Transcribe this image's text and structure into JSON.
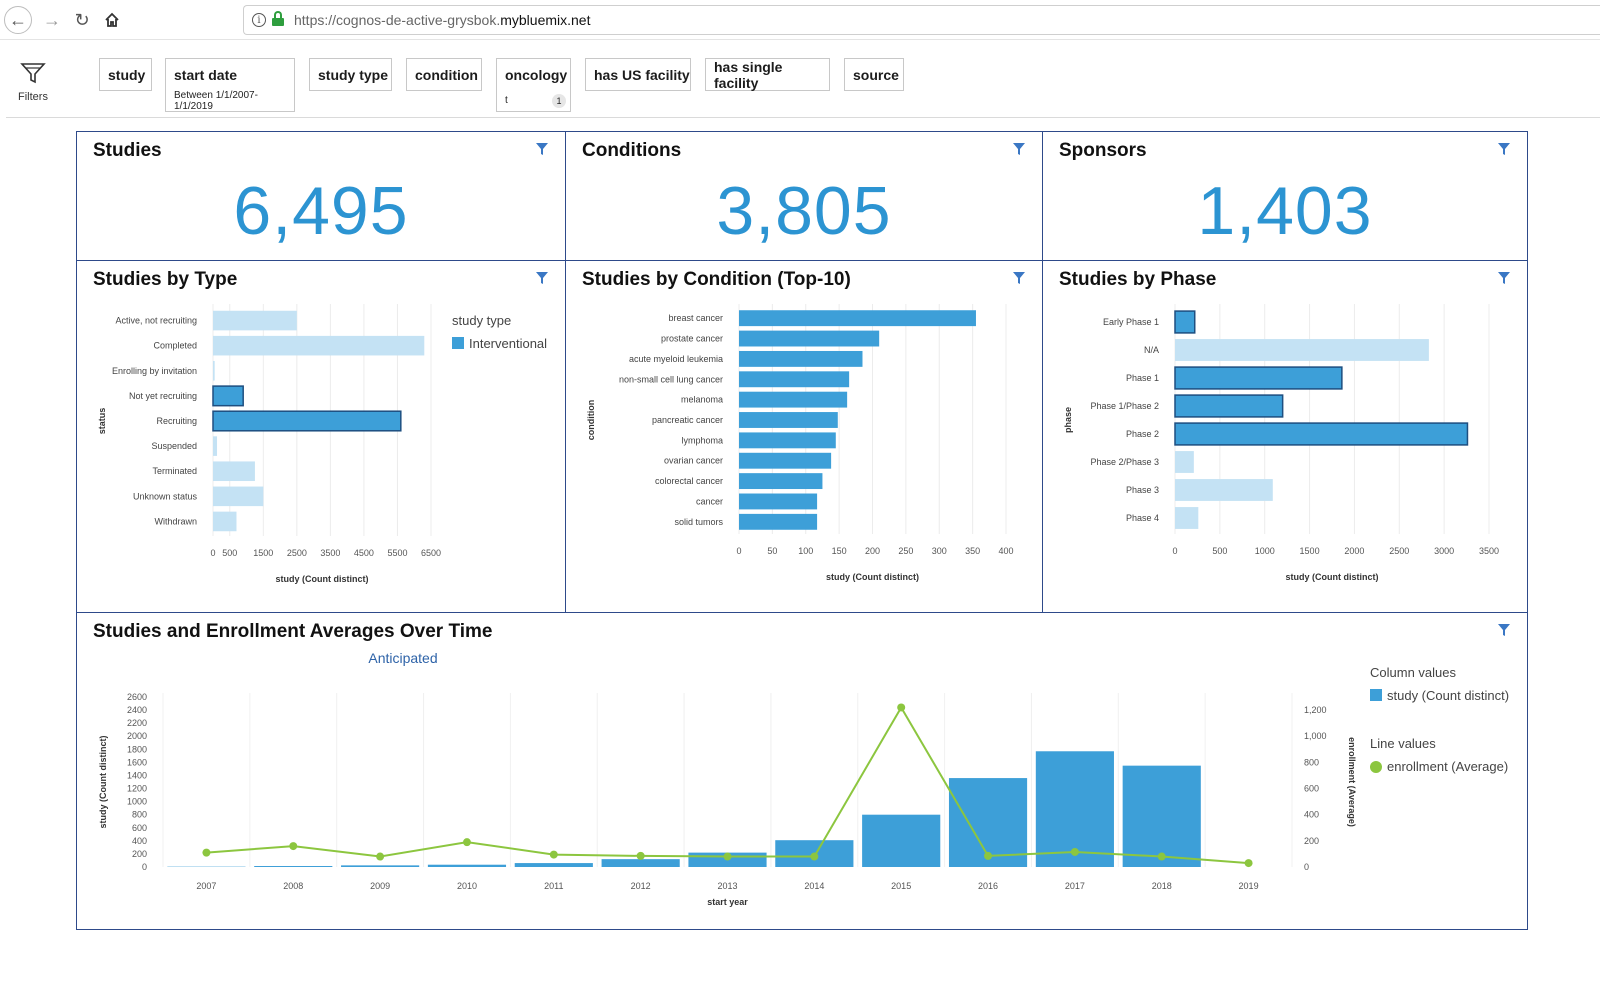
{
  "browser": {
    "url_prefix": "https://cognos-de-active-grysbok.",
    "url_host": "mybluemix.net"
  },
  "filters_label": "Filters",
  "chips": [
    {
      "label": "study"
    },
    {
      "label": "start date",
      "sub": "Between 1/1/2007-1/1/2019"
    },
    {
      "label": "study type"
    },
    {
      "label": "condition"
    },
    {
      "label": "oncology",
      "sub": "t",
      "count": "1"
    },
    {
      "label": "has US facility"
    },
    {
      "label": "has single facility"
    },
    {
      "label": "source"
    }
  ],
  "kpis": [
    {
      "title": "Studies",
      "value": "6,495"
    },
    {
      "title": "Conditions",
      "value": "3,805"
    },
    {
      "title": "Sponsors",
      "value": "1,403"
    }
  ],
  "colors": {
    "accent": "#2c94d2",
    "bar": "#3d9fd8",
    "bar_light": "#c4e2f4",
    "line": "#8cc63f",
    "border": "#2e4a8a"
  },
  "chart_data": [
    {
      "type": "bar",
      "orientation": "horizontal",
      "title": "Studies by Type",
      "ylabel": "status",
      "xlabel": "study (Count distinct)",
      "categories": [
        "Active, not recruiting",
        "Completed",
        "Enrolling by invitation",
        "Not yet recruiting",
        "Recruiting",
        "Suspended",
        "Terminated",
        "Unknown status",
        "Withdrawn"
      ],
      "values": [
        2500,
        6300,
        50,
        900,
        5600,
        120,
        1250,
        1500,
        700
      ],
      "highlighted": [
        false,
        false,
        false,
        true,
        true,
        false,
        false,
        false,
        false
      ],
      "xticks": [
        "0",
        "500",
        "1500",
        "2500",
        "3500",
        "4500",
        "5500",
        "6500"
      ],
      "xtick_values": [
        0,
        500,
        1500,
        2500,
        3500,
        4500,
        5500,
        6500
      ],
      "xlim": [
        0,
        6500
      ],
      "legend_title": "study type",
      "legend_items": [
        "Interventional"
      ]
    },
    {
      "type": "bar",
      "orientation": "horizontal",
      "title": "Studies by Condition (Top-10)",
      "ylabel": "condition",
      "xlabel": "study (Count distinct)",
      "categories": [
        "breast cancer",
        "prostate cancer",
        "acute myeloid leukemia",
        "non-small cell lung cancer",
        "melanoma",
        "pancreatic cancer",
        "lymphoma",
        "ovarian cancer",
        "colorectal cancer",
        "cancer",
        "solid tumors"
      ],
      "values": [
        355,
        210,
        185,
        165,
        162,
        148,
        145,
        138,
        125,
        117,
        117
      ],
      "xticks": [
        "0",
        "50",
        "100",
        "150",
        "200",
        "250",
        "300",
        "350",
        "400"
      ],
      "xtick_values": [
        0,
        50,
        100,
        150,
        200,
        250,
        300,
        350,
        400
      ],
      "xlim": [
        0,
        400
      ]
    },
    {
      "type": "bar",
      "orientation": "horizontal",
      "title": "Studies by Phase",
      "ylabel": "phase",
      "xlabel": "study (Count distinct)",
      "categories": [
        "Early Phase 1",
        "N/A",
        "Phase 1",
        "Phase 1/Phase 2",
        "Phase 2",
        "Phase 2/Phase 3",
        "Phase 3",
        "Phase 4"
      ],
      "values": [
        220,
        2830,
        1860,
        1200,
        3260,
        210,
        1090,
        260
      ],
      "highlighted": [
        true,
        false,
        true,
        true,
        true,
        false,
        false,
        false
      ],
      "xticks": [
        "0",
        "500",
        "1000",
        "1500",
        "2000",
        "2500",
        "3000",
        "3500"
      ],
      "xtick_values": [
        0,
        500,
        1000,
        1500,
        2000,
        2500,
        3000,
        3500
      ],
      "xlim": [
        0,
        3500
      ]
    },
    {
      "type": "bar+line",
      "title": "Studies and Enrollment Averages Over Time",
      "subtitle": "Anticipated",
      "xlabel": "start year",
      "ylabel": "study (Count distinct)",
      "y2label": "enrollment (Average)",
      "categories": [
        "2007",
        "2008",
        "2009",
        "2010",
        "2011",
        "2012",
        "2013",
        "2014",
        "2015",
        "2016",
        "2017",
        "2018",
        "2019"
      ],
      "bar_values": [
        5,
        15,
        25,
        35,
        60,
        120,
        220,
        410,
        800,
        1360,
        1770,
        1550,
        0
      ],
      "line_values": [
        110,
        160,
        80,
        190,
        95,
        85,
        80,
        80,
        1220,
        85,
        115,
        80,
        30
      ],
      "yticks": [
        "0",
        "200",
        "400",
        "600",
        "800",
        "1000",
        "1200",
        "1400",
        "1600",
        "1800",
        "2000",
        "2200",
        "2400",
        "2600"
      ],
      "ylim": [
        0,
        2600
      ],
      "y2ticks": [
        "0",
        "200",
        "400",
        "600",
        "800",
        "1,000",
        "1,200"
      ],
      "y2lim": [
        0,
        1300
      ],
      "legend_column_title": "Column values",
      "legend_column_item": "study (Count distinct)",
      "legend_line_title": "Line values",
      "legend_line_item": "enrollment (Average)"
    }
  ]
}
